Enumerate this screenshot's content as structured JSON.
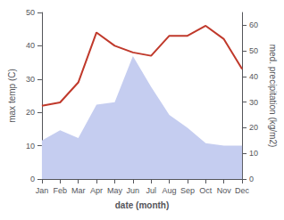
{
  "chart_data": {
    "type": "line",
    "xlabel": "date (month)",
    "ylabel": "max temp (C)",
    "y2label": "med. precipitation (kg/m2)",
    "categories": [
      "Jan",
      "Feb",
      "Mar",
      "Apr",
      "May",
      "Jun",
      "Jul",
      "Aug",
      "Sep",
      "Oct",
      "Nov",
      "Dec"
    ],
    "series": [
      {
        "type": "area",
        "color": "#c5cdf0",
        "axis": "y2",
        "values": [
          15,
          19,
          16,
          29,
          30,
          48,
          36,
          25,
          20,
          14,
          13,
          13
        ]
      },
      {
        "type": "line",
        "color": "#c0392b",
        "values": [
          22,
          23,
          29,
          44,
          40,
          38,
          37,
          43,
          43,
          46,
          42,
          33
        ]
      }
    ],
    "ylim": [
      0,
      50
    ],
    "yticks": [
      0,
      10,
      20,
      30,
      40,
      50
    ],
    "y2lim": [
      0,
      65
    ],
    "y2ticks": [
      0,
      10,
      20,
      30,
      40,
      50,
      60
    ],
    "grid": false
  }
}
